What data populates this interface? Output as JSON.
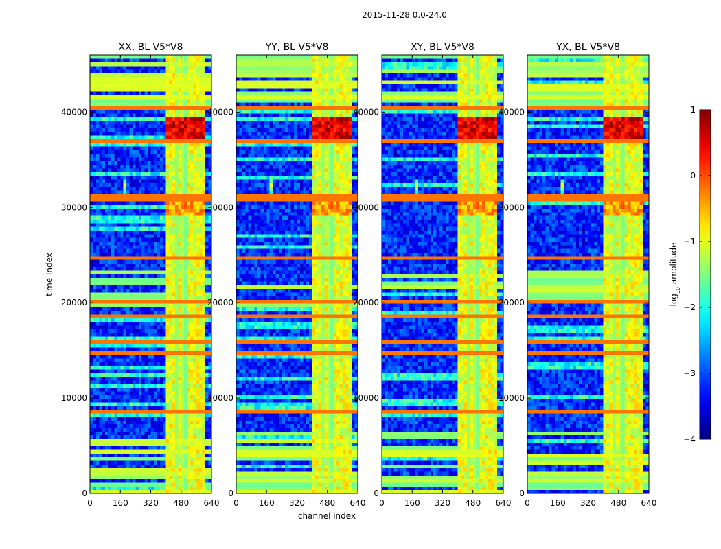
{
  "chart_data": {
    "type": "heatmap",
    "suptitle": "2015-11-28 0.0-24.0",
    "xlabel": "channel index",
    "ylabel": "time index",
    "xlim": [
      0,
      640
    ],
    "ylim": [
      0,
      46000
    ],
    "x_ticks": [
      0,
      160,
      320,
      480,
      640
    ],
    "y_ticks": [
      0,
      10000,
      20000,
      30000,
      40000
    ],
    "panels": [
      {
        "title": "XX, BL V5*V8",
        "polarization": "XX"
      },
      {
        "title": "YY, BL V5*V8",
        "polarization": "YY"
      },
      {
        "title": "XY, BL V5*V8",
        "polarization": "XY"
      },
      {
        "title": "YX, BL V5*V8",
        "polarization": "YX"
      }
    ],
    "colorbar": {
      "label": "log10 amplitude",
      "label_base": "log",
      "label_sub": "10",
      "label_rest": " amplitude",
      "range": [
        -4,
        1
      ],
      "ticks": [
        -4,
        -3,
        -2,
        -1,
        0,
        1
      ],
      "tick_labels": [
        "−4",
        "−3",
        "−2",
        "−1",
        "0",
        "1"
      ],
      "colormap": "jet"
    },
    "features": {
      "rfi_channel_band": [
        400,
        600
      ],
      "rfi_channel_columns": [
        400,
        445,
        460,
        490,
        500,
        530,
        545,
        575,
        590
      ],
      "strong_time_bands": [
        8500,
        14700,
        15900,
        18500,
        20300,
        24600,
        30800,
        31100,
        36900,
        40300
      ],
      "source_spot": {
        "channel": 185,
        "time": 32300
      },
      "background_level": -3.2,
      "rfi_level": -1.0,
      "flare_levels": {
        "band_37000_39500": 0.5,
        "band_29000_30500": -0.4
      }
    }
  }
}
